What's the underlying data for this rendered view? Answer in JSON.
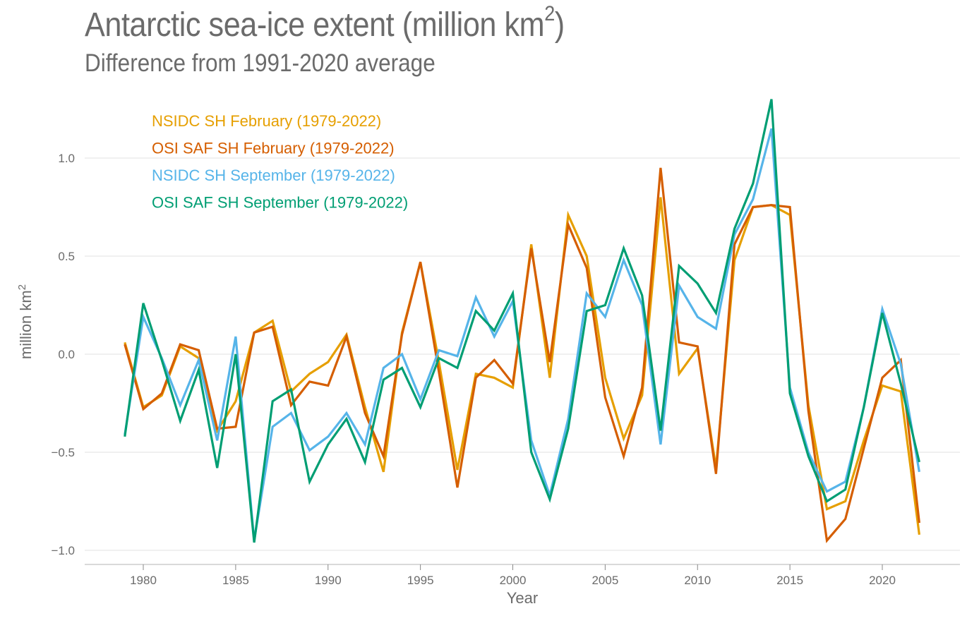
{
  "chart_data": {
    "type": "line",
    "title": "Antarctic sea-ice extent (million km",
    "title_sup": "2",
    "title_end": ")",
    "subtitle": "Difference from 1991-2020 average",
    "xlabel": "Year",
    "ylabel": "million km",
    "ylabel_sup": "2",
    "xlim": [
      1976.2,
      2024.2
    ],
    "ylim": [
      -1.07,
      1.33
    ],
    "xticks": [
      1980,
      1985,
      1990,
      1995,
      2000,
      2005,
      2010,
      2015,
      2020
    ],
    "xtick_labels": [
      "1980",
      "1985",
      "1990",
      "1995",
      "2000",
      "2005",
      "2010",
      "2015",
      "2020"
    ],
    "yticks": [
      1.0,
      0.5,
      0.0,
      -0.5,
      -1.0
    ],
    "ytick_labels": [
      "1.0",
      "0.5",
      "0.0",
      "−0.5",
      "−1.0"
    ],
    "grid": true,
    "legend_position": "top-left",
    "x": [
      1979,
      1980,
      1981,
      1982,
      1983,
      1984,
      1985,
      1986,
      1987,
      1988,
      1989,
      1990,
      1991,
      1992,
      1993,
      1994,
      1995,
      1996,
      1997,
      1998,
      1999,
      2000,
      2001,
      2002,
      2003,
      2004,
      2005,
      2006,
      2007,
      2008,
      2009,
      2010,
      2011,
      2012,
      2013,
      2014,
      2015,
      2016,
      2017,
      2018,
      2019,
      2020,
      2021,
      2022
    ],
    "series": [
      {
        "name": "NSIDC SH February (1979-2022)",
        "color": "#e69f00",
        "values": [
          0.06,
          -0.27,
          -0.21,
          0.04,
          -0.02,
          -0.39,
          -0.24,
          0.11,
          0.17,
          -0.19,
          -0.1,
          -0.04,
          0.1,
          -0.27,
          -0.6,
          0.11,
          0.47,
          -0.04,
          -0.59,
          -0.1,
          -0.12,
          -0.17,
          0.56,
          -0.12,
          0.71,
          0.5,
          -0.12,
          -0.43,
          -0.21,
          0.8,
          -0.1,
          0.03,
          -0.58,
          0.48,
          0.75,
          0.76,
          0.71,
          -0.26,
          -0.79,
          -0.75,
          -0.44,
          -0.16,
          -0.19,
          -0.92
        ]
      },
      {
        "name": "OSI SAF SH February (1979-2022)",
        "color": "#d55e00",
        "values": [
          0.05,
          -0.28,
          -0.2,
          0.05,
          0.02,
          -0.38,
          -0.37,
          0.11,
          0.14,
          -0.26,
          -0.14,
          -0.16,
          0.09,
          -0.3,
          -0.52,
          0.1,
          0.47,
          -0.09,
          -0.68,
          -0.12,
          -0.03,
          -0.15,
          0.54,
          -0.04,
          0.66,
          0.44,
          -0.22,
          -0.52,
          -0.17,
          0.95,
          0.06,
          0.04,
          -0.61,
          0.56,
          0.75,
          0.76,
          0.75,
          -0.29,
          -0.95,
          -0.84,
          -0.48,
          -0.12,
          -0.03,
          -0.86
        ]
      },
      {
        "name": "NSIDC SH September (1979-2022)",
        "color": "#56b4e9",
        "values": [
          -0.41,
          0.19,
          -0.02,
          -0.26,
          -0.03,
          -0.44,
          0.09,
          -0.95,
          -0.37,
          -0.3,
          -0.49,
          -0.42,
          -0.3,
          -0.46,
          -0.07,
          0.0,
          -0.23,
          0.02,
          -0.01,
          0.29,
          0.09,
          0.27,
          -0.44,
          -0.72,
          -0.33,
          0.31,
          0.19,
          0.48,
          0.25,
          -0.46,
          0.35,
          0.19,
          0.13,
          0.61,
          0.79,
          1.15,
          -0.17,
          -0.5,
          -0.7,
          -0.65,
          -0.27,
          0.23,
          -0.05,
          -0.6
        ]
      },
      {
        "name": "OSI SAF SH September (1979-2022)",
        "color": "#009e73",
        "values": [
          -0.42,
          0.26,
          -0.03,
          -0.34,
          -0.08,
          -0.58,
          0.0,
          -0.96,
          -0.24,
          -0.18,
          -0.65,
          -0.46,
          -0.33,
          -0.55,
          -0.13,
          -0.07,
          -0.27,
          -0.02,
          -0.07,
          0.22,
          0.12,
          0.31,
          -0.5,
          -0.74,
          -0.38,
          0.22,
          0.25,
          0.54,
          0.3,
          -0.39,
          0.45,
          0.36,
          0.21,
          0.64,
          0.87,
          1.3,
          -0.2,
          -0.52,
          -0.75,
          -0.69,
          -0.27,
          0.21,
          -0.15,
          -0.55
        ]
      }
    ]
  }
}
